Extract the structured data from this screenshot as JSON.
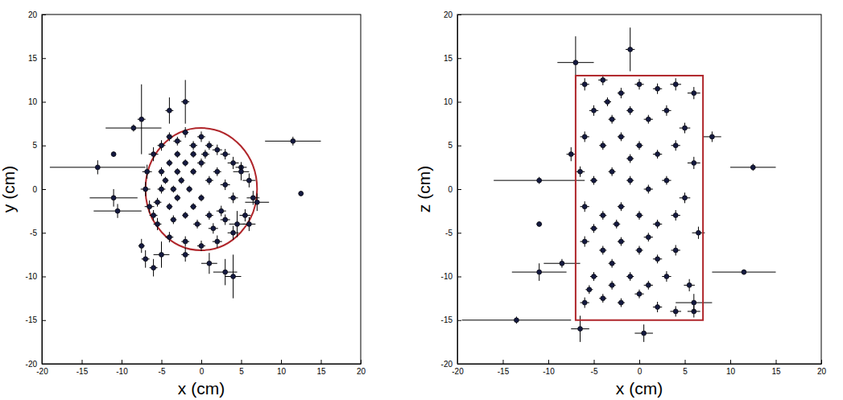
{
  "chart_data": [
    {
      "type": "scatter",
      "x_label": "x (cm)",
      "y_label": "y (cm)",
      "xlim": [
        -20,
        20
      ],
      "ylim": [
        -20,
        20
      ],
      "xticks": [
        -20,
        -15,
        -10,
        -5,
        0,
        5,
        10,
        15,
        20
      ],
      "yticks": [
        -20,
        -15,
        -10,
        -5,
        0,
        5,
        10,
        15,
        20
      ],
      "marker": "circle",
      "color": "#151a40",
      "circle": {
        "center": [
          0,
          0
        ],
        "radius": 7,
        "color": "#b0262b"
      },
      "series": [
        {
          "x": [
            -6,
            -5,
            -4,
            -3,
            -2,
            -1,
            0,
            1,
            2,
            3,
            4,
            5,
            6,
            6.5,
            5.5,
            4,
            2,
            0,
            -2,
            -4,
            -5.5,
            -6.5,
            -7,
            -6.8,
            -5,
            -4,
            -3,
            -2,
            -1,
            0,
            1,
            2,
            3,
            4,
            2.5,
            1,
            -1,
            -2,
            -3,
            -4,
            -5,
            -5.5,
            -4.5,
            -3.5,
            -1.5,
            0,
            -0.5,
            1.5,
            3,
            -3,
            -6,
            -2.5,
            -3.5,
            0.5,
            -1,
            -13,
            -11,
            -11,
            -10.5,
            -8.5,
            -7.5,
            -7,
            -6,
            11.5,
            12.5,
            3,
            4,
            1,
            -2,
            -4,
            -7.5,
            7,
            6,
            4.5,
            5,
            -5,
            -2
          ],
          "values": [
            4,
            5,
            6,
            5.5,
            6.5,
            5,
            6,
            5,
            4.5,
            4,
            3,
            2.5,
            1,
            -1,
            -3,
            -5,
            -6,
            -6.5,
            -6,
            -5.5,
            -4,
            -2,
            0,
            2,
            2,
            3,
            2,
            3,
            2,
            3,
            1,
            2,
            0.5,
            -1,
            -2.5,
            -3,
            -2,
            -3,
            -1,
            -2,
            0,
            -1.5,
            1,
            -3.5,
            0,
            -1,
            -4,
            -4.5,
            -3.5,
            4,
            -3,
            1,
            0,
            4,
            4,
            2.5,
            4,
            -1,
            -2.5,
            7,
            -6.5,
            -8,
            -9,
            5.5,
            -0.5,
            -9.5,
            -10,
            -8.5,
            10,
            9,
            8,
            -1.5,
            -4,
            -4,
            2,
            -7.5,
            -7.5
          ],
          "x_error": [
            0.6,
            0.5,
            0.4,
            0.5,
            0.4,
            0.5,
            0.5,
            0.5,
            0.6,
            0.6,
            0.7,
            0.7,
            0.8,
            0.8,
            0.7,
            0.7,
            0.6,
            0.5,
            0.5,
            0.5,
            0.5,
            0.6,
            0.6,
            0.6,
            0.4,
            0.4,
            0.4,
            0.4,
            0.4,
            0.5,
            0.5,
            0.5,
            0.6,
            0.6,
            0.6,
            0.5,
            0.4,
            0.4,
            0.4,
            0.4,
            0.5,
            0.5,
            0.4,
            0.4,
            0.4,
            0.4,
            0.5,
            0.6,
            0.6,
            0.4,
            0.5,
            0.4,
            0.4,
            0.5,
            0.4,
            6,
            0.3,
            3,
            3,
            3.5,
            0.4,
            0.5,
            0.5,
            3.5,
            0.3,
            1.5,
            1,
            1,
            0.5,
            0.5,
            0.5,
            1.5,
            0.8,
            1,
            1,
            1,
            0.5
          ],
          "y_error": [
            0.8,
            0.6,
            0.5,
            0.5,
            0.6,
            0.5,
            0.6,
            0.5,
            0.6,
            0.6,
            0.7,
            0.6,
            0.8,
            0.8,
            0.7,
            0.8,
            0.7,
            0.6,
            0.6,
            0.6,
            0.7,
            0.7,
            0.8,
            0.8,
            0.5,
            0.4,
            0.4,
            0.4,
            0.4,
            0.5,
            0.5,
            0.5,
            0.6,
            0.6,
            0.6,
            0.5,
            0.4,
            0.4,
            0.4,
            0.4,
            0.5,
            0.5,
            0.4,
            0.5,
            0.4,
            0.4,
            0.5,
            0.6,
            0.6,
            0.4,
            0.6,
            0.4,
            0.4,
            0.5,
            0.4,
            0.8,
            0.3,
            1,
            0.8,
            0.4,
            0.8,
            1,
            1,
            0.5,
            0.3,
            1.5,
            2.5,
            1.2,
            2.5,
            1.5,
            4,
            1,
            0.8,
            1.5,
            1,
            1.5,
            0.8
          ]
        }
      ]
    },
    {
      "type": "scatter",
      "x_label": "x (cm)",
      "y_label": "z (cm)",
      "xlim": [
        -20,
        20
      ],
      "ylim": [
        -20,
        20
      ],
      "xticks": [
        -20,
        -15,
        -10,
        -5,
        0,
        5,
        10,
        15,
        20
      ],
      "yticks": [
        -20,
        -15,
        -10,
        -5,
        0,
        5,
        10,
        15,
        20
      ],
      "marker": "circle",
      "color": "#151a40",
      "rectangle": {
        "x": [
          -7,
          7
        ],
        "y": [
          -15,
          13
        ],
        "color": "#b0262b"
      },
      "series": [
        {
          "x": [
            -6,
            -4,
            -2,
            0,
            2,
            4,
            6,
            -5,
            -3,
            -1,
            1,
            3,
            5,
            -6,
            -4,
            -2,
            0,
            2,
            4,
            6,
            -6.5,
            -5,
            -3,
            -1,
            1,
            3,
            5,
            -6,
            -4,
            -2,
            0,
            2,
            4,
            6.5,
            -6,
            -4,
            -2,
            0,
            2,
            4,
            -5,
            -3,
            -1,
            1,
            3,
            5.5,
            -6,
            -4,
            -2,
            0,
            2,
            4,
            6,
            -5,
            -3,
            -1,
            -3.5,
            -5.5,
            -2.5,
            1,
            -13.5,
            -11,
            -11,
            -11,
            -7,
            -1,
            12.5,
            11.5,
            8,
            0.5,
            -6.5,
            6,
            -8.5,
            -7.5
          ],
          "values": [
            12,
            12.5,
            11,
            12,
            11.5,
            12,
            11,
            9,
            8,
            9,
            8,
            9,
            7,
            6,
            5,
            6,
            5,
            4,
            5,
            3,
            2,
            1,
            2,
            1,
            0,
            1,
            -1,
            -2,
            -3,
            -2,
            -3,
            -4,
            -3,
            -5,
            -6,
            -7,
            -6,
            -7,
            -8,
            -7,
            -10,
            -11,
            -10,
            -11,
            -10,
            -11,
            -13,
            -12.5,
            -13,
            -12,
            -13.5,
            -14,
            -14,
            -4.5,
            -8.5,
            3.5,
            10,
            -11.5,
            -4,
            -5.5,
            -15,
            -9.5,
            1,
            -4,
            14.5,
            16,
            2.5,
            -9.5,
            6,
            -16.5,
            -16,
            -13,
            -8.5,
            4
          ],
          "x_error": [
            0.5,
            0.5,
            0.4,
            0.5,
            0.5,
            0.6,
            0.7,
            0.5,
            0.4,
            0.4,
            0.5,
            0.5,
            0.6,
            0.5,
            0.4,
            0.4,
            0.4,
            0.5,
            0.5,
            0.7,
            0.5,
            0.4,
            0.4,
            0.4,
            0.5,
            0.5,
            0.6,
            0.5,
            0.4,
            0.4,
            0.4,
            0.5,
            0.5,
            0.7,
            0.5,
            0.4,
            0.4,
            0.4,
            0.5,
            0.5,
            0.4,
            0.4,
            0.4,
            0.5,
            0.5,
            0.6,
            0.5,
            0.4,
            0.4,
            0.5,
            0.5,
            0.6,
            0.7,
            0.4,
            0.4,
            0.4,
            0.4,
            0.4,
            0.4,
            0.5,
            6,
            3,
            5,
            0.3,
            2,
            0.5,
            2.5,
            3.5,
            1,
            1,
            1,
            2,
            2,
            0.5
          ],
          "y_error": [
            0.7,
            0.6,
            0.6,
            0.6,
            0.6,
            0.7,
            0.7,
            0.6,
            0.5,
            0.5,
            0.5,
            0.6,
            0.6,
            0.6,
            0.5,
            0.5,
            0.5,
            0.5,
            0.6,
            0.7,
            0.6,
            0.5,
            0.5,
            0.5,
            0.5,
            0.5,
            0.6,
            0.6,
            0.5,
            0.5,
            0.5,
            0.5,
            0.6,
            0.7,
            0.6,
            0.5,
            0.5,
            0.5,
            0.5,
            0.6,
            0.5,
            0.5,
            0.5,
            0.5,
            0.6,
            0.7,
            0.6,
            0.5,
            0.5,
            0.5,
            0.6,
            0.6,
            0.7,
            0.5,
            0.5,
            0.5,
            0.5,
            0.5,
            0.5,
            0.5,
            0.4,
            1,
            0.4,
            0.3,
            3,
            2.5,
            0.4,
            0.3,
            0.6,
            1,
            1.5,
            1,
            0.5,
            0.8
          ]
        }
      ]
    }
  ]
}
